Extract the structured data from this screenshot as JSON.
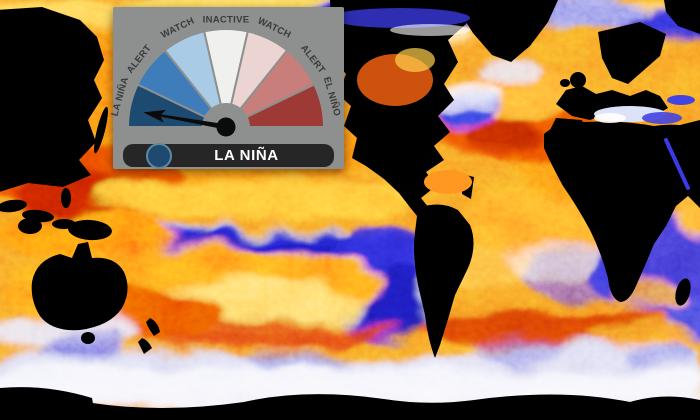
{
  "gauge": {
    "status": "LA NIÑA",
    "needle_angle_deg": -80,
    "panel_color": "#8e908f",
    "needle_color": "#0b0b0b",
    "label_color": "#3a3a3c",
    "status_bar_color": "#262626",
    "status_text_color": "#ffffff",
    "indicator_dot_color": "#1d4a6e",
    "indicator_dot_border": "#5d89a8",
    "segments": [
      {
        "label": "LA NIÑA",
        "color": "#1d4a70"
      },
      {
        "label": "ALERT",
        "color": "#3f7cba"
      },
      {
        "label": "WATCH",
        "color": "#a9cbe6"
      },
      {
        "label": "INACTIVE",
        "color": "#f0f1ee"
      },
      {
        "label": "WATCH",
        "color": "#ecd4d3"
      },
      {
        "label": "ALERT",
        "color": "#c87e7b"
      },
      {
        "label": "EL NIÑO",
        "color": "#9d3a36"
      }
    ]
  },
  "map": {
    "land_color": "#000000",
    "warm_palette": [
      "#ffd24d",
      "#ff8c1a",
      "#e03c00",
      "#a81800"
    ],
    "cool_palette": [
      "#e6e6ff",
      "#8a8ae8",
      "#3a3ad0",
      "#1414a8"
    ],
    "equatorial_cold_tongue_color": "#2020c8",
    "southern_ocean_color": "#e8e8f6"
  }
}
